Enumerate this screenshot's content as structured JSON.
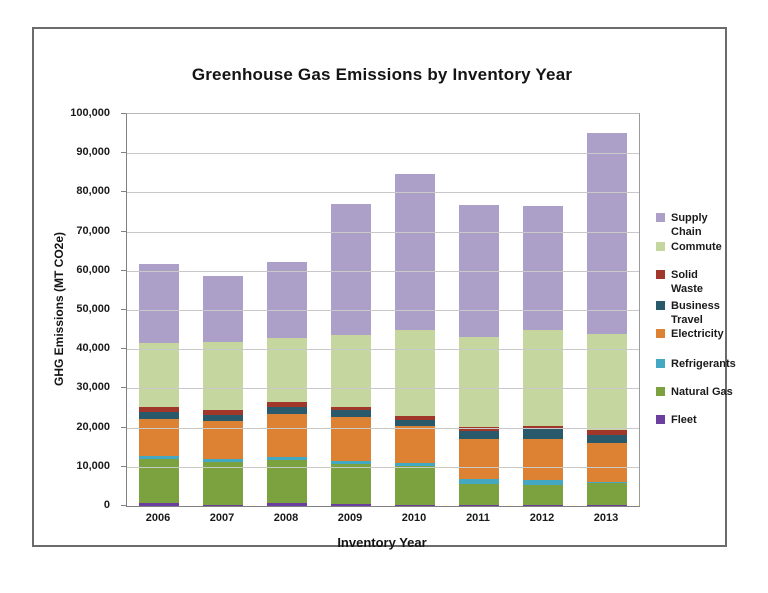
{
  "chart": {
    "title": "Greenhouse Gas Emissions by Inventory Year",
    "x_axis_title": "Inventory Year",
    "y_axis_title": "GHG Emissions (MT CO2e)",
    "y_tick_labels_top_to_bottom": [
      "100,000",
      "90,000",
      "80,000",
      "70,000",
      "60,000",
      "50,000",
      "40,000",
      "30,000",
      "20,000",
      "10,000",
      "0"
    ]
  },
  "chart_data": {
    "type": "bar",
    "stacked": true,
    "title": "Greenhouse Gas Emissions by Inventory Year",
    "xlabel": "Inventory Year",
    "ylabel": "GHG Emissions (MT CO2e)",
    "ylim": [
      0,
      100000
    ],
    "y_tick_interval": 10000,
    "grid": true,
    "legend_position": "right",
    "categories": [
      "2006",
      "2007",
      "2008",
      "2009",
      "2010",
      "2011",
      "2012",
      "2013"
    ],
    "series_bottom_to_top": [
      {
        "name": "Fleet",
        "color": "#6B3FA0",
        "values": [
          800,
          300,
          900,
          600,
          300,
          200,
          200,
          200
        ]
      },
      {
        "name": "Natural Gas",
        "color": "#7CA23F",
        "values": [
          11100,
          11000,
          10900,
          10200,
          9900,
          5500,
          5200,
          5800
        ]
      },
      {
        "name": "Refrigerants",
        "color": "#45A8C2",
        "values": [
          900,
          800,
          800,
          700,
          900,
          1100,
          1200,
          200
        ]
      },
      {
        "name": "Electricity",
        "color": "#DD8233",
        "values": [
          9400,
          9600,
          10900,
          11300,
          9400,
          10300,
          10600,
          10000
        ]
      },
      {
        "name": "Business Travel",
        "color": "#285A6B",
        "values": [
          1700,
          1500,
          1700,
          1600,
          1400,
          2100,
          2400,
          2000
        ]
      },
      {
        "name": "Solid Waste",
        "color": "#A1362B",
        "values": [
          1300,
          1400,
          1400,
          900,
          1100,
          900,
          900,
          1200
        ]
      },
      {
        "name": "Commute",
        "color": "#C5D79E",
        "values": [
          16300,
          17200,
          16300,
          18400,
          21800,
          23100,
          24400,
          24500
        ]
      },
      {
        "name": "Supply Chain",
        "color": "#ADA0C8",
        "values": [
          20300,
          17000,
          19400,
          33300,
          40000,
          33500,
          31700,
          51300
        ]
      }
    ],
    "totals": [
      61800,
      58800,
      62300,
      77000,
      84800,
      76700,
      76600,
      95200
    ]
  },
  "legend_items_top_to_bottom": [
    {
      "label": "Supply\nChain",
      "color": "#ADA0C8"
    },
    {
      "label": "Commute",
      "color": "#C5D79E"
    },
    {
      "label": "Solid\nWaste",
      "color": "#A1362B"
    },
    {
      "label": "Business\nTravel",
      "color": "#285A6B"
    },
    {
      "label": "Electricity",
      "color": "#DD8233"
    },
    {
      "label": "Refrigerants",
      "color": "#45A8C2"
    },
    {
      "label": "Natural Gas",
      "color": "#7CA23F"
    },
    {
      "label": "Fleet",
      "color": "#6B3FA0"
    }
  ]
}
